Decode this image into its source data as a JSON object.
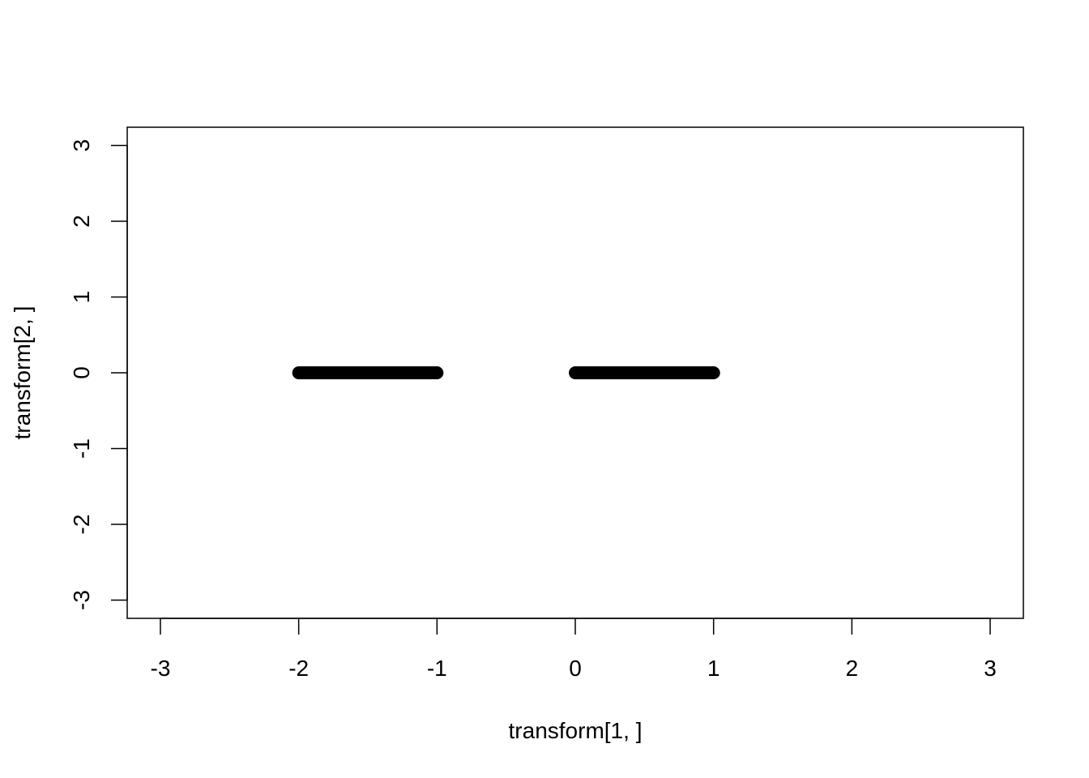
{
  "chart_data": {
    "type": "scatter",
    "title": "",
    "xlabel": "transform[1, ]",
    "ylabel": "transform[2, ]",
    "xlim": [
      -3.24,
      3.24
    ],
    "ylim": [
      -3.24,
      3.24
    ],
    "xticks": [
      -3,
      -2,
      -1,
      0,
      1,
      2,
      3
    ],
    "yticks": [
      -3,
      -2,
      -1,
      0,
      1,
      2,
      3
    ],
    "xtick_labels": [
      "-3",
      "-2",
      "-1",
      "0",
      "1",
      "2",
      "3"
    ],
    "ytick_labels": [
      "-3",
      "-2",
      "-1",
      "0",
      "1",
      "2",
      "3"
    ],
    "grid": false,
    "point_color": "#000000",
    "series": [
      {
        "points_x": [
          -2.0,
          -1.9,
          -1.8,
          -1.7,
          -1.6,
          -1.5,
          -1.4,
          -1.3,
          -1.2,
          -1.1,
          -1.0,
          0.0,
          0.1,
          0.2,
          0.3,
          0.4,
          0.5,
          0.6,
          0.7,
          0.8,
          0.9,
          1.0
        ],
        "points_y": [
          0,
          0,
          0,
          0,
          0,
          0,
          0,
          0,
          0,
          0,
          0,
          0,
          0,
          0,
          0,
          0,
          0,
          0,
          0,
          0,
          0,
          0
        ]
      }
    ]
  }
}
